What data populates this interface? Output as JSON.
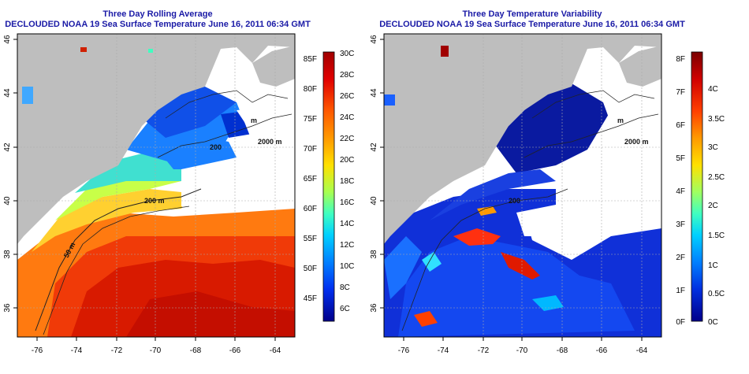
{
  "left_panel": {
    "title": "Three Day Rolling Average",
    "subtitle": "DECLOUDED NOAA 19 Sea Surface Temperature June 16, 2011 06:34 GMT",
    "x_ticks": [
      "-76",
      "-74",
      "-72",
      "-70",
      "-68",
      "-66",
      "-64"
    ],
    "y_ticks": [
      "36",
      "38",
      "40",
      "42",
      "44",
      "46"
    ],
    "contour_labels": [
      "50 m",
      "200 m",
      "200",
      "2000 m",
      "m"
    ],
    "colorbar": {
      "fahrenheit_labels": [
        "85F",
        "80F",
        "75F",
        "70F",
        "65F",
        "60F",
        "55F",
        "50F",
        "45F"
      ],
      "celsius_labels": [
        "30C",
        "28C",
        "26C",
        "24C",
        "22C",
        "20C",
        "18C",
        "16C",
        "14C",
        "12C",
        "10C",
        "8C",
        "6C"
      ],
      "colors": [
        "#a00000",
        "#d40000",
        "#ff2a00",
        "#ff6a00",
        "#ffaa00",
        "#ffe000",
        "#b8ff40",
        "#40ffb0",
        "#00d0ff",
        "#0090ff",
        "#0040ff",
        "#0000c8",
        "#00008a"
      ]
    }
  },
  "right_panel": {
    "title": "Three Day Temperature Variability",
    "subtitle": "DECLOUDED NOAA 19 Sea Surface Temperature June 16, 2011 06:34 GMT",
    "x_ticks": [
      "-76",
      "-74",
      "-72",
      "-70",
      "-68",
      "-66",
      "-64"
    ],
    "y_ticks": [
      "36",
      "38",
      "40",
      "42",
      "44",
      "46"
    ],
    "contour_labels": [
      "200",
      "2000 m",
      "m"
    ],
    "colorbar": {
      "fahrenheit_labels": [
        "8F",
        "7F",
        "6F",
        "5F",
        "4F",
        "3F",
        "2F",
        "1F",
        "0F"
      ],
      "celsius_labels": [
        "4C",
        "3.5C",
        "3C",
        "2.5C",
        "2C",
        "1.5C",
        "1C",
        "0.5C",
        "0C"
      ],
      "colors": [
        "#7a0000",
        "#c80000",
        "#ff3000",
        "#ff8c00",
        "#ffd800",
        "#c8ff30",
        "#50ffa0",
        "#00e0ff",
        "#0090ff",
        "#0040ff",
        "#0000d0",
        "#00008a"
      ]
    }
  }
}
